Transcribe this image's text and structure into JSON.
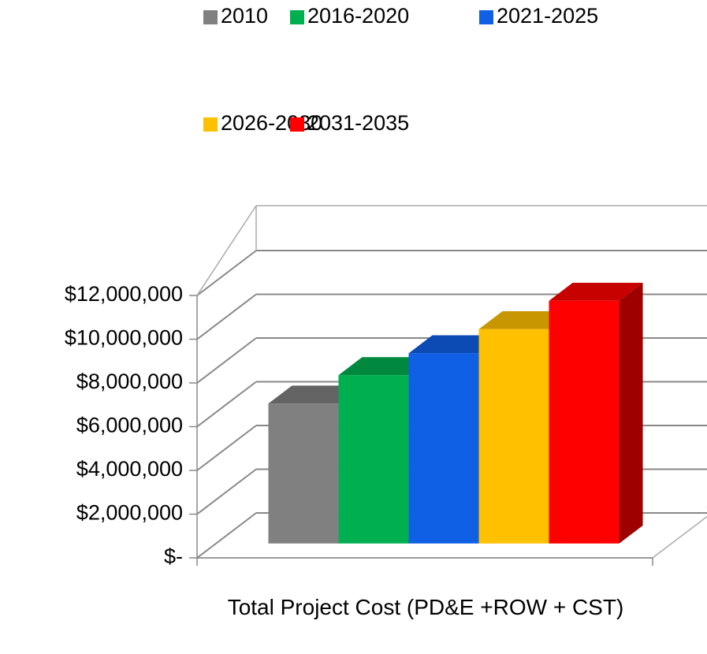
{
  "chart_data": {
    "type": "bar3d",
    "categories": [
      "Total Project Cost (PD&E +ROW + CST)"
    ],
    "series": [
      {
        "name": "2010",
        "color": "#808080",
        "values": [
          6400000
        ]
      },
      {
        "name": "2016-2020",
        "color": "#00b050",
        "values": [
          7700000
        ]
      },
      {
        "name": "2021-2025",
        "color": "#1060e6",
        "values": [
          8700000
        ]
      },
      {
        "name": "2026-2030",
        "color": "#ffc000",
        "values": [
          9800000
        ]
      },
      {
        "name": "2031-2035",
        "color": "#ff0000",
        "values": [
          11100000
        ]
      }
    ],
    "ylim": [
      0,
      12000000
    ],
    "yticks": [
      {
        "value": 0,
        "label": "$-"
      },
      {
        "value": 2000000,
        "label": "$2,000,000"
      },
      {
        "value": 4000000,
        "label": "$4,000,000"
      },
      {
        "value": 6000000,
        "label": "$6,000,000"
      },
      {
        "value": 8000000,
        "label": "$8,000,000"
      },
      {
        "value": 10000000,
        "label": "$10,000,000"
      },
      {
        "value": 12000000,
        "label": "$12,000,000"
      }
    ],
    "grid": true,
    "legend": "top"
  }
}
